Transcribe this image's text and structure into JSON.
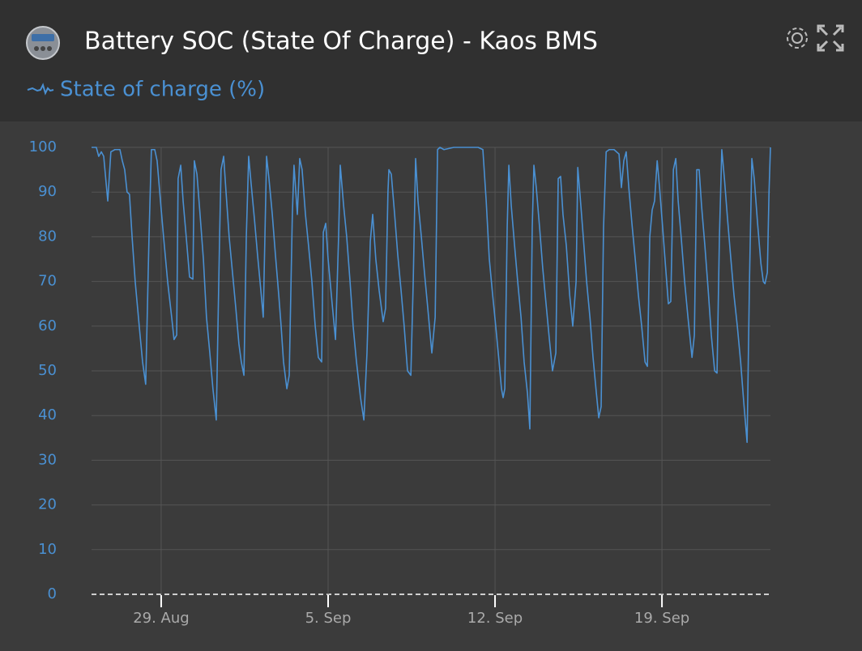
{
  "chart_data": {
    "type": "line",
    "title": "Battery SOC (State Of Charge) - Kaos BMS",
    "x": [
      -2.92,
      -2.72,
      -2.62,
      -2.51,
      -2.41,
      -2.24,
      -2.11,
      -1.94,
      -1.73,
      -1.63,
      -1.53,
      -1.43,
      -1.33,
      -1.22,
      -1.09,
      -0.92,
      -0.78,
      -0.65,
      -0.51,
      -0.41,
      -0.27,
      -0.17,
      -0.03,
      0.1,
      0.27,
      0.44,
      0.54,
      0.65,
      0.71,
      0.82,
      0.92,
      1.05,
      1.19,
      1.33,
      1.39,
      1.5,
      1.63,
      1.77,
      1.9,
      2.04,
      2.17,
      2.31,
      2.45,
      2.51,
      2.62,
      2.72,
      2.85,
      2.99,
      3.13,
      3.26,
      3.36,
      3.47,
      3.57,
      3.67,
      3.77,
      3.91,
      4.04,
      4.18,
      4.28,
      4.42,
      4.52,
      4.66,
      4.79,
      4.93,
      5.03,
      5.13,
      5.27,
      5.37,
      5.5,
      5.57,
      5.71,
      5.81,
      5.91,
      6.05,
      6.18,
      6.32,
      6.46,
      6.59,
      6.73,
      6.8,
      6.9,
      7.0,
      7.17,
      7.31,
      7.44,
      7.51,
      7.65,
      7.78,
      7.92,
      8.05,
      8.19,
      8.36,
      8.5,
      8.63,
      8.77,
      8.87,
      9.0,
      9.14,
      9.31,
      9.41,
      9.51,
      9.55,
      9.65,
      9.79,
      9.92,
      10.06,
      10.19,
      10.33,
      10.47,
      10.57,
      10.67,
      10.77,
      10.91,
      11.04,
      11.18,
      11.35,
      11.49,
      11.59,
      11.69,
      11.86,
      12.27,
      12.78,
      13.29,
      13.49,
      13.63,
      13.76,
      13.9,
      14.03,
      14.17,
      14.27,
      14.34,
      14.41,
      14.51,
      14.58,
      14.68,
      14.82,
      14.95,
      15.09,
      15.22,
      15.36,
      15.46,
      15.56,
      15.63,
      15.73,
      15.87,
      16.0,
      16.14,
      16.28,
      16.41,
      16.55,
      16.65,
      16.75,
      16.85,
      16.99,
      17.13,
      17.26,
      17.4,
      17.47,
      17.57,
      17.7,
      17.84,
      17.98,
      18.11,
      18.25,
      18.35,
      18.45,
      18.55,
      18.66,
      18.79,
      18.99,
      19.2,
      19.3,
      19.4,
      19.5,
      19.61,
      19.74,
      19.88,
      20.01,
      20.15,
      20.29,
      20.39,
      20.49,
      20.59,
      20.69,
      20.8,
      20.9,
      21.03,
      21.17,
      21.27,
      21.37,
      21.48,
      21.58,
      21.68,
      21.82,
      21.95,
      22.09,
      22.26,
      22.36,
      22.46,
      22.56,
      22.66,
      22.8,
      22.94,
      23.07,
      23.21,
      23.31,
      23.41,
      23.51,
      23.62,
      23.75,
      23.89,
      24.02,
      24.16,
      24.3,
      24.43,
      24.57,
      24.67,
      24.77,
      24.87,
      25.01,
      25.15,
      25.25,
      25.32,
      25.42,
      25.49,
      25.55
    ],
    "series": [
      {
        "name": "State of charge (%)",
        "color": "#4a90d2",
        "values": [
          100,
          100,
          98,
          99,
          98,
          88,
          99,
          99.5,
          99.5,
          97,
          95,
          90,
          89.5,
          80,
          70,
          60,
          52,
          47,
          80,
          99.5,
          99.5,
          97,
          88,
          80,
          70,
          62,
          57,
          58,
          93,
          96,
          88,
          80,
          71,
          70.5,
          97,
          94,
          85,
          75,
          62,
          54,
          46,
          39,
          80,
          95,
          98,
          90,
          80,
          72,
          64,
          56,
          52,
          49,
          80,
          98,
          92,
          84,
          76,
          68,
          62,
          98,
          93,
          85,
          76,
          67,
          60,
          52,
          46,
          49,
          85,
          96,
          85,
          97.5,
          95,
          85,
          78,
          70,
          60,
          53,
          52,
          81,
          83,
          75,
          65,
          57,
          80,
          96,
          87,
          80,
          70,
          60,
          52,
          44,
          39,
          54,
          79,
          85,
          75,
          68,
          61,
          64,
          90,
          95,
          94,
          85,
          76,
          68,
          60,
          50,
          49,
          70,
          97.5,
          88,
          80,
          72,
          64,
          54,
          62,
          99.5,
          100,
          99.5,
          100,
          100,
          100,
          99.5,
          88,
          75,
          67,
          60,
          52,
          46,
          44,
          46,
          82,
          96,
          87,
          78,
          70,
          62,
          52,
          45,
          37,
          82,
          96,
          91,
          82,
          73,
          65,
          57,
          50,
          54,
          93,
          93.5,
          85,
          78,
          67,
          60,
          70,
          95.5,
          89,
          80,
          70,
          62,
          53,
          45,
          39.5,
          42,
          82,
          99,
          99.5,
          99.5,
          98.5,
          91,
          97,
          99,
          91,
          83,
          75,
          67,
          60,
          52,
          51,
          80,
          86,
          88,
          97,
          91,
          82,
          72,
          65,
          65.5,
          95,
          97.5,
          88,
          79,
          70,
          62,
          53,
          58,
          95,
          95,
          87,
          78,
          68,
          58,
          50,
          49.5,
          80,
          99.5,
          93,
          84,
          75,
          67,
          60,
          52,
          43,
          34,
          70,
          97.5,
          93,
          83,
          74,
          70,
          69.5,
          72,
          90,
          100
        ]
      }
    ],
    "xlim": [
      -2.92,
      25.55
    ],
    "xticks": [
      {
        "value": 0,
        "label": "29. Aug"
      },
      {
        "value": 7,
        "label": "5. Sep"
      },
      {
        "value": 14,
        "label": "12. Sep"
      },
      {
        "value": 21,
        "label": "19. Sep"
      }
    ],
    "ylim": [
      0,
      100
    ],
    "yticks": [
      0,
      10,
      20,
      30,
      40,
      50,
      60,
      70,
      80,
      90,
      100
    ],
    "grid": true
  }
}
